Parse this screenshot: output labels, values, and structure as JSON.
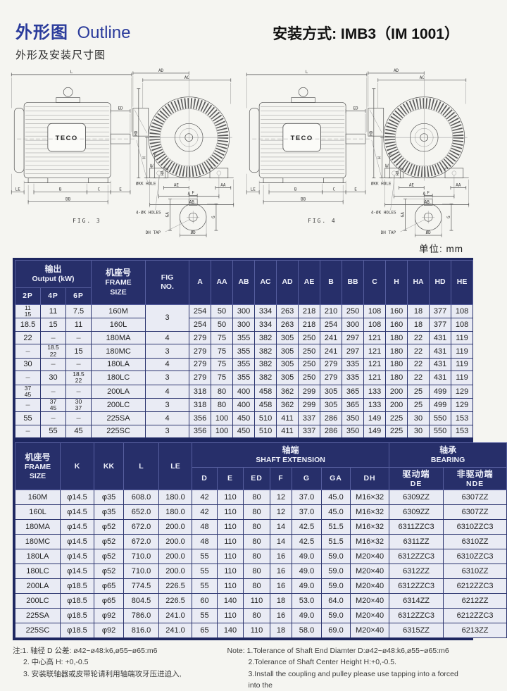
{
  "header": {
    "title_zh": "外形图",
    "title_en": "Outline",
    "subtitle": "外形及安装尺寸图",
    "mount_title": "安装方式: IMB3（IM 1001）",
    "unit_label": "单位: mm"
  },
  "figures": {
    "fig3_caption": "FIG. 3",
    "fig4_caption": "FIG. 4",
    "labels": {
      "brand": "TECO",
      "L": "L",
      "ED": "ED",
      "E": "E",
      "LE": "LE",
      "B": "B",
      "C": "C",
      "BB": "BB",
      "AD": "AD",
      "AC": "AC",
      "HD": "HD",
      "H": "H",
      "HE": "HE",
      "HA": "HA",
      "AE": "AE",
      "AA": "AA",
      "A": "A",
      "AB": "AB",
      "kk_hole": "ØKK HOLE",
      "k_holes": "4-ØK HOLES",
      "F": "F",
      "GA": "GA",
      "G": "G",
      "dh_tap": "DH TAP",
      "dia_d": "ØD"
    }
  },
  "table1": {
    "header": {
      "output_zh": "输出",
      "output_en": "Output (kW)",
      "poles": [
        "2P",
        "4P",
        "6P"
      ],
      "frame_zh": "机座号",
      "frame_en1": "FRAME",
      "frame_en2": "SIZE",
      "fig1": "FIG",
      "fig2": "NO.",
      "dims": [
        "A",
        "AA",
        "AB",
        "AC",
        "AD",
        "AE",
        "B",
        "BB",
        "C",
        "H",
        "HA",
        "HD",
        "HE"
      ]
    },
    "rows": [
      {
        "out": [
          "11\n15",
          "11",
          "7.5"
        ],
        "frame": "160M",
        "fig": "3",
        "figspan": 2,
        "dims": [
          "254",
          "50",
          "300",
          "334",
          "263",
          "218",
          "210",
          "250",
          "108",
          "160",
          "18",
          "377",
          "108"
        ]
      },
      {
        "out": [
          "18.5",
          "15",
          "11"
        ],
        "frame": "160L",
        "fig": null,
        "dims": [
          "254",
          "50",
          "300",
          "334",
          "263",
          "218",
          "254",
          "300",
          "108",
          "160",
          "18",
          "377",
          "108"
        ]
      },
      {
        "out": [
          "22",
          "–",
          "–"
        ],
        "frame": "180MA",
        "fig": "4",
        "dims": [
          "279",
          "75",
          "355",
          "382",
          "305",
          "250",
          "241",
          "297",
          "121",
          "180",
          "22",
          "431",
          "119"
        ]
      },
      {
        "out": [
          "–",
          "18.5\n22",
          "15"
        ],
        "frame": "180MC",
        "fig": "3",
        "dims": [
          "279",
          "75",
          "355",
          "382",
          "305",
          "250",
          "241",
          "297",
          "121",
          "180",
          "22",
          "431",
          "119"
        ]
      },
      {
        "out": [
          "30",
          "–",
          "–"
        ],
        "frame": "180LA",
        "fig": "4",
        "dims": [
          "279",
          "75",
          "355",
          "382",
          "305",
          "250",
          "279",
          "335",
          "121",
          "180",
          "22",
          "431",
          "119"
        ]
      },
      {
        "out": [
          "–",
          "30",
          "18.5\n22"
        ],
        "frame": "180LC",
        "fig": "3",
        "dims": [
          "279",
          "75",
          "355",
          "382",
          "305",
          "250",
          "279",
          "335",
          "121",
          "180",
          "22",
          "431",
          "119"
        ]
      },
      {
        "out": [
          "37\n45",
          "–",
          "–"
        ],
        "frame": "200LA",
        "fig": "4",
        "dims": [
          "318",
          "80",
          "400",
          "458",
          "362",
          "299",
          "305",
          "365",
          "133",
          "200",
          "25",
          "499",
          "129"
        ]
      },
      {
        "out": [
          "–",
          "37\n45",
          "30\n37"
        ],
        "frame": "200LC",
        "fig": "3",
        "dims": [
          "318",
          "80",
          "400",
          "458",
          "362",
          "299",
          "305",
          "365",
          "133",
          "200",
          "25",
          "499",
          "129"
        ]
      },
      {
        "out": [
          "55",
          "–",
          "–"
        ],
        "frame": "225SA",
        "fig": "4",
        "dims": [
          "356",
          "100",
          "450",
          "510",
          "411",
          "337",
          "286",
          "350",
          "149",
          "225",
          "30",
          "550",
          "153"
        ]
      },
      {
        "out": [
          "–",
          "55",
          "45"
        ],
        "frame": "225SC",
        "fig": "3",
        "dims": [
          "356",
          "100",
          "450",
          "510",
          "411",
          "337",
          "286",
          "350",
          "149",
          "225",
          "30",
          "550",
          "153"
        ]
      }
    ]
  },
  "table2": {
    "header": {
      "frame_zh": "机座号",
      "frame_en1": "FRAME",
      "frame_en2": "SIZE",
      "k": "K",
      "kk": "KK",
      "l": "L",
      "le": "LE",
      "shaft_zh": "轴端",
      "shaft_en": "SHAFT  EXTENSION",
      "shaft_dims": [
        "D",
        "E",
        "ED",
        "F",
        "G",
        "GA",
        "DH"
      ],
      "bearing_zh": "轴承",
      "bearing_en": "BEARING",
      "de_zh": "驱动端",
      "de_en": "DE",
      "nde_zh": "非驱动端",
      "nde_en": "NDE"
    },
    "rows": [
      {
        "frame": "160M",
        "vals": [
          "φ14.5",
          "φ35",
          "608.0",
          "180.0",
          "42",
          "110",
          "80",
          "12",
          "37.0",
          "45.0",
          "M16×32",
          "6309ZZ",
          "6307ZZ"
        ]
      },
      {
        "frame": "160L",
        "vals": [
          "φ14.5",
          "φ35",
          "652.0",
          "180.0",
          "42",
          "110",
          "80",
          "12",
          "37.0",
          "45.0",
          "M16×32",
          "6309ZZ",
          "6307ZZ"
        ]
      },
      {
        "frame": "180MA",
        "vals": [
          "φ14.5",
          "φ52",
          "672.0",
          "200.0",
          "48",
          "110",
          "80",
          "14",
          "42.5",
          "51.5",
          "M16×32",
          "6311ZZC3",
          "6310ZZC3"
        ]
      },
      {
        "frame": "180MC",
        "vals": [
          "φ14.5",
          "φ52",
          "672.0",
          "200.0",
          "48",
          "110",
          "80",
          "14",
          "42.5",
          "51.5",
          "M16×32",
          "6311ZZ",
          "6310ZZ"
        ]
      },
      {
        "frame": "180LA",
        "vals": [
          "φ14.5",
          "φ52",
          "710.0",
          "200.0",
          "55",
          "110",
          "80",
          "16",
          "49.0",
          "59.0",
          "M20×40",
          "6312ZZC3",
          "6310ZZC3"
        ]
      },
      {
        "frame": "180LC",
        "vals": [
          "φ14.5",
          "φ52",
          "710.0",
          "200.0",
          "55",
          "110",
          "80",
          "16",
          "49.0",
          "59.0",
          "M20×40",
          "6312ZZ",
          "6310ZZ"
        ]
      },
      {
        "frame": "200LA",
        "vals": [
          "φ18.5",
          "φ65",
          "774.5",
          "226.5",
          "55",
          "110",
          "80",
          "16",
          "49.0",
          "59.0",
          "M20×40",
          "6312ZZC3",
          "6212ZZC3"
        ]
      },
      {
        "frame": "200LC",
        "vals": [
          "φ18.5",
          "φ65",
          "804.5",
          "226.5",
          "60",
          "140",
          "110",
          "18",
          "53.0",
          "64.0",
          "M20×40",
          "6314ZZ",
          "6212ZZ"
        ]
      },
      {
        "frame": "225SA",
        "vals": [
          "φ18.5",
          "φ92",
          "786.0",
          "241.0",
          "55",
          "110",
          "80",
          "16",
          "49.0",
          "59.0",
          "M20×40",
          "6312ZZC3",
          "6212ZZC3"
        ]
      },
      {
        "frame": "225SC",
        "vals": [
          "φ18.5",
          "φ92",
          "816.0",
          "241.0",
          "65",
          "140",
          "110",
          "18",
          "58.0",
          "69.0",
          "M20×40",
          "6315ZZ",
          "6213ZZ"
        ]
      }
    ]
  },
  "notes": {
    "zh": [
      "注:1. 轴径 D 公差: ø42~ø48:k6,ø55~ø65:m6",
      "2. 中心高 H: +0,-0.5",
      "3. 安装联轴器或皮带轮请利用轴端攻牙压进迫入,"
    ],
    "en": [
      "Note: 1.Tolerance of Shaft End Diamter D:ø42~ø48:k6,ø55~ø65:m6",
      "2.Tolerance of Shaft Center Height H:+0,-0.5.",
      "3.Install the coupling and pulley please use tapping into a forced into the"
    ]
  }
}
